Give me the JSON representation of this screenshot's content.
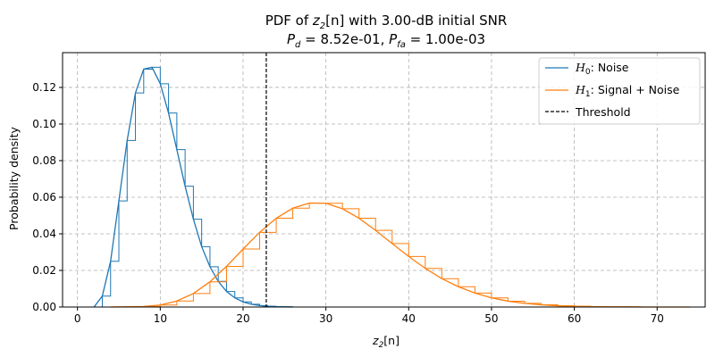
{
  "chart_data": {
    "type": "line",
    "title_line1_prefix": "PDF of ",
    "title_line1_var": "z",
    "title_line1_sub": "2",
    "title_line1_arg": "[n]",
    "title_line1_suffix": " with 3.00-dB initial SNR",
    "title_line2_pd_label": "P",
    "title_line2_pd_sub": "d",
    "title_line2_pd_value": " = 8.52e-01, ",
    "title_line2_pfa_label": "P",
    "title_line2_pfa_sub": "fa",
    "title_line2_pfa_value": " = 1.00e-03",
    "xlabel_var": "z",
    "xlabel_sub": "2",
    "xlabel_arg": "[n]",
    "ylabel": "Probability density",
    "xlim": [
      -1.8,
      75.8
    ],
    "ylim": [
      0,
      0.139
    ],
    "xticks": [
      0,
      10,
      20,
      30,
      40,
      50,
      60,
      70
    ],
    "yticks": [
      0.0,
      0.02,
      0.04,
      0.06,
      0.08,
      0.1,
      0.12
    ],
    "ytick_labels": [
      "0.00",
      "0.02",
      "0.04",
      "0.06",
      "0.08",
      "0.10",
      "0.12"
    ],
    "grid": true,
    "legend_position": "top-right",
    "threshold": 22.8,
    "series": [
      {
        "name_math": "H",
        "name_sub": "0",
        "name_rest": ": Noise",
        "color": "#1f77b4",
        "style": "step",
        "x": [
          2.0,
          3.0,
          4.0,
          5.0,
          6.0,
          7.0,
          8.0,
          9.0,
          10.0,
          11.0,
          12.0,
          13.0,
          14.0,
          15.0,
          16.0,
          17.0,
          18.0,
          19.0,
          20.0,
          21.0,
          22.0,
          23.0,
          24.0,
          25.0,
          26.0
        ],
        "y": [
          0.0,
          0.006,
          0.025,
          0.058,
          0.091,
          0.117,
          0.13,
          0.131,
          0.122,
          0.106,
          0.086,
          0.066,
          0.048,
          0.033,
          0.022,
          0.014,
          0.0085,
          0.005,
          0.0028,
          0.0015,
          0.0008,
          0.0004,
          0.0002,
          0.0001,
          0.0
        ]
      },
      {
        "name_math": "H",
        "name_sub": "1",
        "name_rest": ": Signal + Noise",
        "color": "#ff7f0e",
        "style": "step",
        "x": [
          4,
          8,
          10,
          12,
          14,
          16,
          18,
          20,
          22,
          24,
          26,
          28,
          30,
          32,
          34,
          36,
          38,
          40,
          42,
          44,
          46,
          48,
          50,
          52,
          54,
          56,
          58,
          60,
          62,
          64,
          66,
          68,
          70,
          72,
          74
        ],
        "y": [
          0.0,
          0.0003,
          0.0011,
          0.0033,
          0.0074,
          0.0138,
          0.0222,
          0.0317,
          0.0408,
          0.0485,
          0.054,
          0.0568,
          0.0567,
          0.0537,
          0.0485,
          0.0419,
          0.0347,
          0.0276,
          0.0211,
          0.0155,
          0.0111,
          0.0076,
          0.005,
          0.0032,
          0.002,
          0.0012,
          0.0007,
          0.0004,
          0.0002,
          0.0001,
          0.0001,
          0.0,
          0.0,
          0.0,
          0.0
        ]
      }
    ],
    "threshold_legend": "Threshold"
  }
}
